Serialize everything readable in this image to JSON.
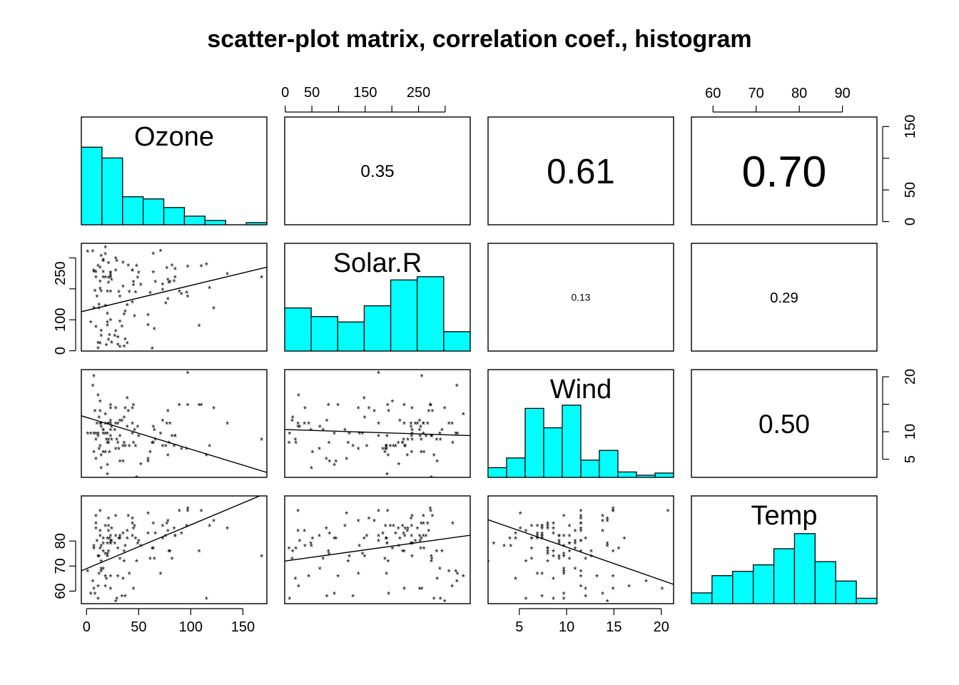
{
  "title": "scatter-plot matrix, correlation coef., histogram",
  "colors": {
    "histogram_fill": "#00FFFF",
    "stroke": "#000000"
  },
  "variables": [
    "Ozone",
    "Solar.R",
    "Wind",
    "Temp"
  ],
  "axes": {
    "Ozone": {
      "range": [
        -5,
        173
      ],
      "ticks": [
        0,
        50,
        100,
        150
      ]
    },
    "Solar.R": {
      "range": [
        -1,
        347
      ],
      "ticks": [
        0,
        50,
        150,
        250
      ],
      "ticks_right_extra": [
        100,
        200,
        300
      ]
    },
    "Wind": {
      "range": [
        1.7,
        21.3
      ],
      "ticks": [
        5,
        10,
        15,
        20
      ]
    },
    "Temp": {
      "range": [
        55,
        98
      ],
      "ticks": [
        60,
        70,
        80,
        90
      ]
    }
  },
  "histogram_count_axis": {
    "range": [
      -5,
      165
    ],
    "ticks": [
      0,
      50,
      150
    ]
  },
  "chart_data": {
    "type": "scatter",
    "panel_layout": "scatter-plot matrix: lower = scatter with fitted line, diagonal = histogram, upper = correlation coefficient",
    "correlations": [
      {
        "vars": [
          "Ozone",
          "Solar.R"
        ],
        "label": "0.35",
        "value": 0.35
      },
      {
        "vars": [
          "Ozone",
          "Wind"
        ],
        "label": "0.61",
        "value": 0.61
      },
      {
        "vars": [
          "Ozone",
          "Temp"
        ],
        "label": "0.70",
        "value": 0.7
      },
      {
        "vars": [
          "Solar.R",
          "Wind"
        ],
        "label": "0.13",
        "value": 0.13
      },
      {
        "vars": [
          "Solar.R",
          "Temp"
        ],
        "label": "0.29",
        "value": 0.29
      },
      {
        "vars": [
          "Wind",
          "Temp"
        ],
        "label": "0.50",
        "value": 0.5
      }
    ],
    "histograms": {
      "Ozone": {
        "breaks": [
          0,
          20,
          40,
          60,
          80,
          100,
          120,
          140,
          160,
          180
        ],
        "heights": [
          0.72,
          0.62,
          0.26,
          0.24,
          0.16,
          0.08,
          0.04,
          0.0,
          0.02
        ]
      },
      "Solar.R": {
        "breaks": [
          0,
          50,
          100,
          150,
          200,
          250,
          300,
          350
        ],
        "heights": [
          0.4,
          0.32,
          0.27,
          0.42,
          0.66,
          0.69,
          0.18
        ]
      },
      "Wind": {
        "breaks": [
          2,
          4,
          6,
          8,
          10,
          12,
          14,
          16,
          18,
          20,
          22
        ],
        "heights": [
          0.09,
          0.18,
          0.64,
          0.46,
          0.67,
          0.16,
          0.25,
          0.05,
          0.02,
          0.04
        ]
      },
      "Temp": {
        "breaks": [
          55,
          60,
          65,
          70,
          75,
          80,
          85,
          90,
          95,
          100
        ],
        "heights": [
          0.1,
          0.26,
          0.3,
          0.36,
          0.51,
          0.65,
          0.39,
          0.21,
          0.05
        ]
      }
    },
    "lines": {
      "Solar.R~Ozone": [
        [
          -5,
          126
        ],
        [
          173,
          270
        ]
      ],
      "Wind~Ozone": [
        [
          -5,
          12.9
        ],
        [
          173,
          2.6
        ]
      ],
      "Temp~Ozone": [
        [
          -5,
          68.1
        ],
        [
          173,
          99.2
        ]
      ],
      "Wind~Solar.R": [
        [
          -1,
          10.4
        ],
        [
          347,
          9.3
        ]
      ],
      "Temp~Solar.R": [
        [
          -1,
          72.0
        ],
        [
          347,
          82.3
        ]
      ],
      "Temp~Wind": [
        [
          1.7,
          88.5
        ],
        [
          21.3,
          62.7
        ]
      ]
    },
    "points": {
      "Ozone": [
        41,
        36,
        12,
        18,
        28,
        23,
        19,
        8,
        7,
        16,
        11,
        14,
        18,
        14,
        34,
        6,
        30,
        11,
        1,
        11,
        4,
        32,
        23,
        45,
        115,
        37,
        29,
        71,
        39,
        23,
        21,
        37,
        20,
        12,
        13,
        135,
        49,
        32,
        64,
        40,
        77,
        97,
        97,
        85,
        10,
        27,
        7,
        48,
        35,
        61,
        79,
        63,
        16,
        80,
        108,
        20,
        52,
        82,
        50,
        64,
        59,
        39,
        9,
        16,
        78,
        35,
        66,
        122,
        89,
        110,
        44,
        28,
        65,
        22,
        59,
        23,
        31,
        44,
        21,
        9,
        45,
        168,
        73,
        76,
        118,
        84,
        85,
        96,
        78,
        73,
        91,
        47,
        32,
        20,
        23,
        21,
        24,
        44,
        21,
        28,
        9,
        13,
        46,
        18,
        13,
        24,
        16,
        13,
        23,
        36,
        7,
        14,
        30,
        14,
        18,
        20
      ],
      "Solar.R": [
        190,
        118,
        149,
        313,
        299,
        99,
        19,
        194,
        256,
        290,
        274,
        65,
        334,
        307,
        78,
        322,
        44,
        8,
        320,
        25,
        92,
        13,
        252,
        223,
        279,
        127,
        291,
        323,
        148,
        191,
        284,
        37,
        120,
        137,
        269,
        248,
        236,
        175,
        314,
        276,
        267,
        272,
        175,
        264,
        175,
        48,
        260,
        274,
        285,
        187,
        220,
        7,
        294,
        223,
        81,
        82,
        213,
        275,
        253,
        254,
        83,
        24,
        77,
        255,
        229,
        207,
        222,
        137,
        192,
        273,
        157,
        64,
        71,
        51,
        115,
        244,
        190,
        259,
        36,
        255,
        212,
        238,
        215,
        153,
        203,
        225,
        237,
        188,
        167,
        197,
        183,
        189,
        95,
        92,
        252,
        220,
        230,
        259,
        236,
        259,
        238,
        24,
        112,
        237,
        224,
        27,
        238,
        201,
        238,
        14,
        139,
        49,
        20,
        193,
        145,
        191,
        131,
        223
      ],
      "Wind": [
        7.4,
        8.0,
        12.6,
        11.5,
        14.3,
        14.9,
        8.6,
        13.8,
        20.1,
        9.7,
        9.2,
        10.9,
        13.2,
        11.5,
        12.0,
        18.4,
        11.5,
        9.7,
        9.7,
        16.6,
        9.7,
        12.0,
        12.0,
        14.9,
        5.7,
        7.4,
        8.6,
        9.7,
        16.1,
        9.2,
        8.6,
        14.3,
        9.7,
        6.9,
        13.8,
        11.5,
        10.9,
        9.2,
        8.0,
        13.8,
        11.5,
        14.9,
        20.7,
        9.2,
        11.5,
        10.3,
        6.3,
        1.7,
        4.6,
        6.3,
        8.0,
        8.0,
        10.3,
        11.5,
        14.9,
        8.0,
        4.1,
        9.2,
        9.2,
        10.9,
        4.6,
        10.9,
        5.1,
        6.3,
        5.7,
        7.4,
        8.6,
        14.3,
        14.9,
        14.9,
        14.3,
        6.9,
        10.3,
        6.3,
        5.1,
        11.5,
        6.9,
        9.7,
        11.5,
        8.6,
        8.0,
        8.6,
        12.0,
        7.4,
        7.4,
        7.4,
        9.2,
        6.9,
        13.8,
        7.4,
        6.9,
        7.4,
        4.6,
        4.0,
        10.3,
        8.0,
        8.6,
        11.5,
        11.5,
        11.5,
        9.7,
        11.5,
        10.3,
        6.3,
        7.4,
        10.9,
        10.3,
        15.5,
        14.3,
        12.6,
        9.7,
        3.4,
        8.0,
        5.7,
        9.7,
        2.3,
        6.3,
        6.3,
        6.9,
        5.1,
        2.8,
        4.6,
        7.4,
        15.5,
        10.9,
        10.3,
        10.9,
        9.7,
        14.9,
        15.5,
        6.3,
        10.9,
        11.5,
        6.9,
        13.8,
        10.3,
        10.3,
        8.0,
        12.6,
        9.2,
        10.3,
        10.3,
        16.6,
        6.9,
        13.2,
        14.3,
        8.0,
        11.5
      ],
      "Temp": [
        67,
        72,
        74,
        62,
        56,
        66,
        65,
        59,
        61,
        69,
        74,
        69,
        66,
        68,
        58,
        64,
        66,
        57,
        68,
        62,
        59,
        73,
        61,
        61,
        57,
        58,
        57,
        67,
        81,
        79,
        76,
        78,
        74,
        67,
        84,
        85,
        79,
        82,
        87,
        90,
        87,
        93,
        92,
        82,
        80,
        79,
        77,
        72,
        65,
        73,
        76,
        77,
        76,
        76,
        76,
        75,
        78,
        73,
        80,
        77,
        83,
        84,
        85,
        81,
        84,
        83,
        83,
        88,
        92,
        92,
        89,
        82,
        73,
        81,
        91,
        80,
        81,
        82,
        84,
        87,
        85,
        74,
        81,
        82,
        86,
        85,
        82,
        86,
        88,
        86,
        83,
        81,
        81,
        81,
        82,
        86,
        85,
        87,
        89,
        90,
        90,
        92,
        86,
        86,
        82,
        80,
        79,
        77,
        79,
        76,
        78,
        78,
        77,
        72,
        75,
        79,
        81,
        86,
        88,
        97,
        94,
        96,
        94,
        91,
        92,
        93,
        93,
        87,
        84,
        80,
        78,
        75,
        73,
        81,
        76,
        77,
        71,
        71,
        78,
        67,
        76,
        68,
        82,
        64,
        71,
        81,
        69,
        63,
        70,
        77,
        75,
        76,
        68
      ]
    }
  }
}
